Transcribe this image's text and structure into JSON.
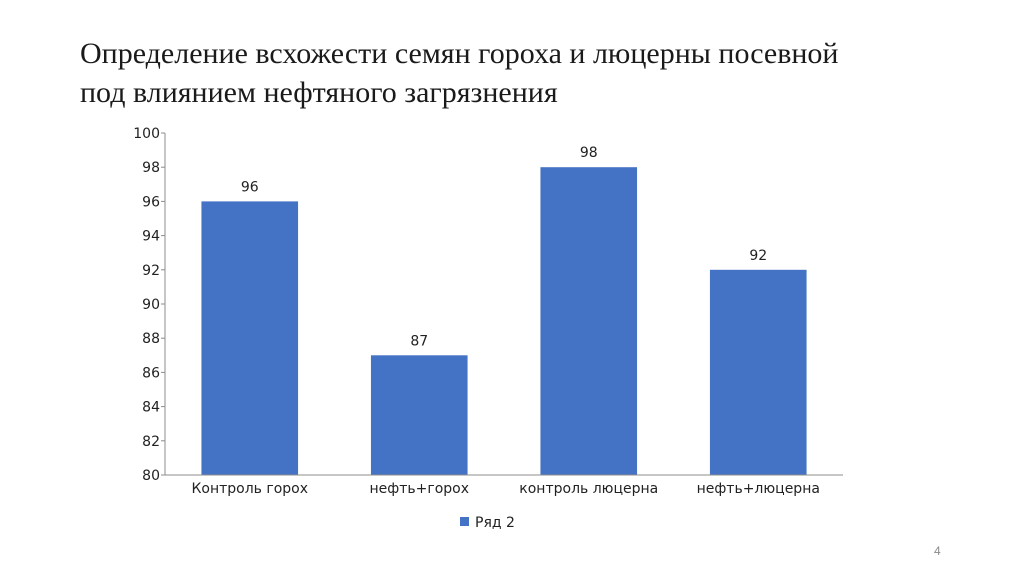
{
  "slide": {
    "title_line1": "Определение всхожести семян гороха и люцерны посевной",
    "title_line2": "под влиянием нефтяного загрязнения",
    "page_number": "4"
  },
  "colors": {
    "bar": "#4472C4",
    "axis": "#8c8c8c",
    "text": "#222222"
  },
  "chart_data": {
    "type": "bar",
    "categories": [
      "Контроль горох",
      "нефть+горох",
      "контроль люцерна",
      "нефть+люцерна"
    ],
    "series": [
      {
        "name": "Ряд 2",
        "values": [
          96,
          87,
          98,
          92
        ]
      }
    ],
    "ylim": [
      80,
      100
    ],
    "yticks": [
      80,
      82,
      84,
      86,
      88,
      90,
      92,
      94,
      96,
      98,
      100
    ],
    "data_labels": true,
    "grid": false,
    "legend": "bottom"
  }
}
